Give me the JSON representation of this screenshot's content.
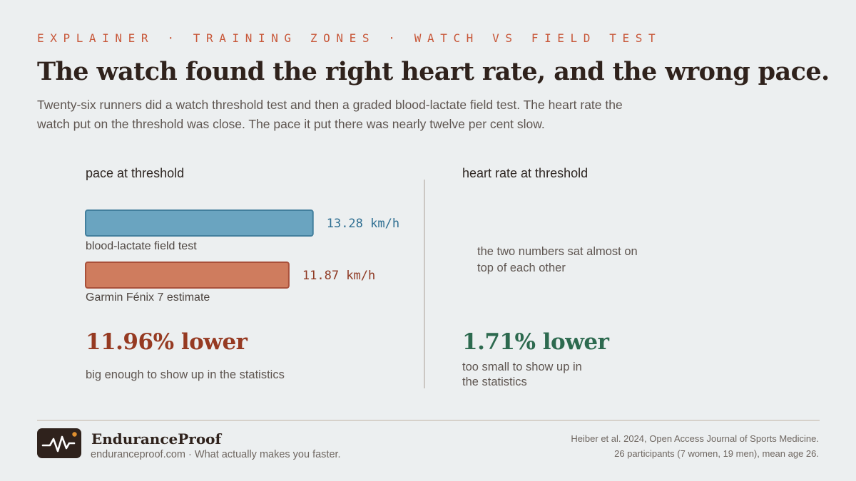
{
  "header": {
    "kicker": "EXPLAINER · TRAINING ZONES · WATCH VS FIELD TEST",
    "headline": "The watch found the right heart rate, and the wrong pace.",
    "lede": "Twenty-six runners did a watch threshold test and then a graded blood-lactate field test. The heart rate the watch put on the threshold was close. The pace it put there was nearly twelve per cent slow."
  },
  "pace_panel": {
    "title": "pace at threshold",
    "bars": [
      {
        "label": "blood-lactate field test",
        "value_label": "13.28 km/h"
      },
      {
        "label": "Garmin Fénix 7 estimate",
        "value_label": "11.87 km/h"
      }
    ],
    "difference": "11.96% lower",
    "difference_note": "big enough to show up in the statistics"
  },
  "hr_panel": {
    "title": "heart rate at threshold",
    "note": "the two numbers sat almost on top of each other",
    "difference": "1.71% lower",
    "difference_note": "too small to show up in the statistics"
  },
  "chart_data": {
    "type": "bar",
    "orientation": "horizontal",
    "title": "pace at threshold",
    "unit": "km/h",
    "categories": [
      "blood-lactate field test",
      "Garmin Fénix 7 estimate"
    ],
    "values": [
      13.28,
      11.87
    ],
    "colors": [
      "#6aa4c0",
      "#cf7c5e"
    ],
    "stroke_colors": [
      "#427f9d",
      "#a9503a"
    ],
    "label_colors": [
      "#2f6f92",
      "#8f3a24"
    ]
  },
  "colors": {
    "kicker": "#c8583a",
    "pace_difference": "#963a22",
    "hr_difference": "#2d6a4f"
  },
  "footer": {
    "brand": "EnduranceProof",
    "tagline": "enduranceproof.com · What actually makes you faster.",
    "source_line1": "Heiber et al. 2024, Open Access Journal of Sports Medicine.",
    "source_line2": "26 participants (7 women, 19 men), mean age 26."
  }
}
